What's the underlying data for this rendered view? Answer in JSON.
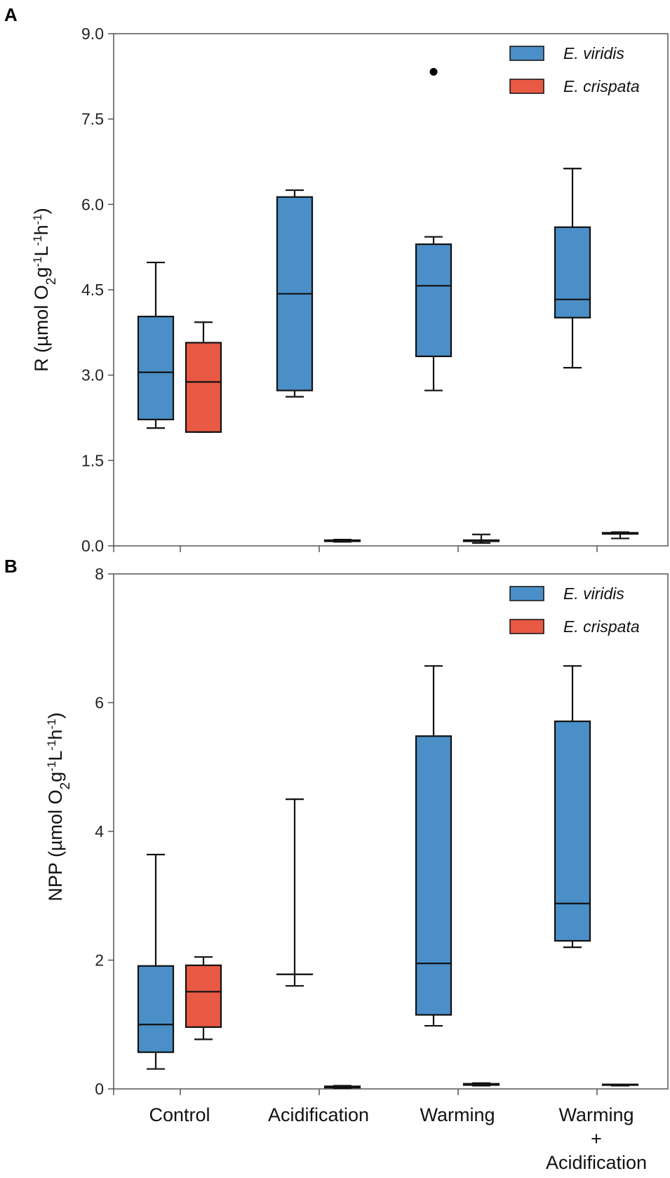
{
  "figure": {
    "panel_a_letter": "A",
    "panel_b_letter": "B"
  },
  "colors": {
    "viridis": "#4a8fc8",
    "crispata": "#e85a44",
    "stroke": "#111111",
    "axis": "#555555"
  },
  "chart_data": [
    {
      "panel": "A",
      "type": "boxplot",
      "title": "",
      "xlabel": "",
      "ylabel": {
        "prefix": "R (",
        "unit": "µmol O",
        "sub": "2",
        "g": "g",
        "exp1": "-1",
        "L": "L",
        "exp2": "-1",
        "h": "h",
        "exp3": "-1",
        "suffix": ")"
      },
      "ylim": [
        0,
        9
      ],
      "yticks": [
        "0.0",
        "1.5",
        "3.0",
        "4.5",
        "6.0",
        "7.5",
        "9.0"
      ],
      "yticks_values": [
        0,
        1.5,
        3.0,
        4.5,
        6.0,
        7.5,
        9.0
      ],
      "categories": [
        "Control",
        "Acidification",
        "Warming",
        "Warming + Acidification"
      ],
      "legend": {
        "position": "top-right",
        "entries": [
          "E. viridis",
          "E. crispata"
        ]
      },
      "series": [
        {
          "name": "E. viridis",
          "color_key": "viridis",
          "boxes": [
            {
              "min": 2.07,
              "q1": 2.22,
              "median": 3.05,
              "q3": 4.03,
              "max": 4.98,
              "outliers": []
            },
            {
              "min": 2.62,
              "q1": 2.73,
              "median": 4.43,
              "q3": 6.13,
              "max": 6.25,
              "outliers": []
            },
            {
              "min": 2.73,
              "q1": 3.33,
              "median": 4.57,
              "q3": 5.3,
              "max": 5.43,
              "outliers": [
                8.33
              ]
            },
            {
              "min": 3.13,
              "q1": 4.01,
              "median": 4.33,
              "q3": 5.6,
              "max": 6.63,
              "outliers": []
            }
          ]
        },
        {
          "name": "E. crispata",
          "color_key": "crispata",
          "boxes": [
            {
              "min": 2.0,
              "q1": 2.0,
              "median": 2.88,
              "q3": 3.57,
              "max": 3.93,
              "outliers": []
            },
            {
              "min": 0.07,
              "q1": 0.08,
              "median": 0.09,
              "q3": 0.1,
              "max": 0.11,
              "outliers": []
            },
            {
              "min": 0.05,
              "q1": 0.08,
              "median": 0.09,
              "q3": 0.1,
              "max": 0.2,
              "outliers": []
            },
            {
              "min": 0.13,
              "q1": 0.21,
              "median": 0.22,
              "q3": 0.23,
              "max": 0.24,
              "outliers": []
            }
          ]
        }
      ]
    },
    {
      "panel": "B",
      "type": "boxplot",
      "title": "",
      "xlabel": "",
      "ylabel": {
        "prefix": "NPP (",
        "unit": "µmol O",
        "sub": "2",
        "g": "g",
        "exp1": "-1",
        "L": "L",
        "exp2": "-1",
        "h": "h",
        "exp3": "-1",
        "suffix": ")"
      },
      "ylim": [
        0,
        8
      ],
      "yticks": [
        "0",
        "2",
        "4",
        "6",
        "8"
      ],
      "yticks_values": [
        0,
        2,
        4,
        6,
        8
      ],
      "categories": [
        "Control",
        "Acidification",
        "Warming",
        "Warming + Acidification"
      ],
      "category_label_lines": [
        [
          "Control"
        ],
        [
          "Acidification"
        ],
        [
          "Warming"
        ],
        [
          "Warming",
          "+",
          "Acidification"
        ]
      ],
      "legend": {
        "position": "top-right",
        "entries": [
          "E. viridis",
          "E. crispata"
        ]
      },
      "series": [
        {
          "name": "E. viridis",
          "color_key": "viridis",
          "boxes": [
            {
              "min": 0.31,
              "q1": 0.57,
              "median": 1.0,
              "q3": 1.91,
              "max": 3.64,
              "outliers": []
            },
            {
              "min": 1.6,
              "q1": 1.78,
              "median": 1.78,
              "q3": 1.78,
              "max": 4.5,
              "outliers": []
            },
            {
              "min": 0.98,
              "q1": 1.15,
              "median": 1.95,
              "q3": 5.48,
              "max": 6.57,
              "outliers": []
            },
            {
              "min": 2.2,
              "q1": 2.3,
              "median": 2.88,
              "q3": 5.71,
              "max": 6.57,
              "outliers": []
            }
          ]
        },
        {
          "name": "E. crispata",
          "color_key": "crispata",
          "boxes": [
            {
              "min": 0.77,
              "q1": 0.96,
              "median": 1.51,
              "q3": 1.92,
              "max": 2.05,
              "outliers": []
            },
            {
              "min": 0.01,
              "q1": 0.02,
              "median": 0.03,
              "q3": 0.04,
              "max": 0.05,
              "outliers": []
            },
            {
              "min": 0.05,
              "q1": 0.06,
              "median": 0.07,
              "q3": 0.08,
              "max": 0.09,
              "outliers": []
            },
            {
              "min": 0.05,
              "q1": 0.06,
              "median": 0.06,
              "q3": 0.07,
              "max": 0.07,
              "outliers": []
            }
          ]
        }
      ]
    }
  ]
}
